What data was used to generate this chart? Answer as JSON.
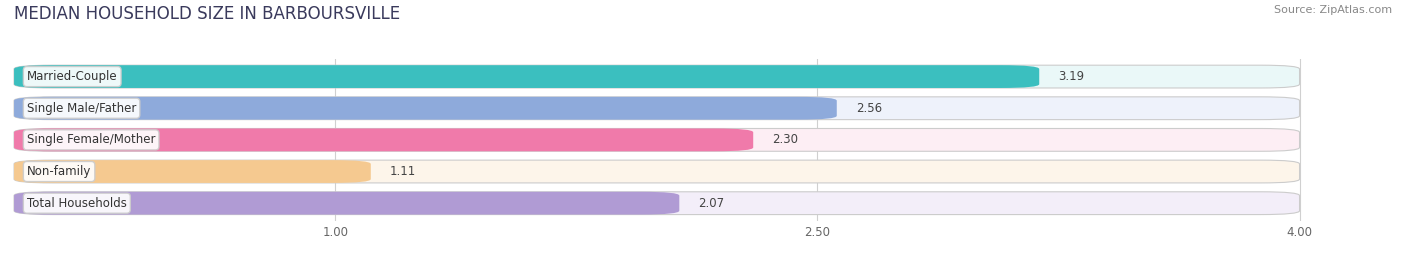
{
  "title": "MEDIAN HOUSEHOLD SIZE IN BARBOURSVILLE",
  "source": "Source: ZipAtlas.com",
  "categories": [
    "Married-Couple",
    "Single Male/Father",
    "Single Female/Mother",
    "Non-family",
    "Total Households"
  ],
  "values": [
    3.19,
    2.56,
    2.3,
    1.11,
    2.07
  ],
  "value_labels": [
    "3.19",
    "2.56",
    "2.30",
    "1.11",
    "2.07"
  ],
  "bar_colors": [
    "#3bbfbf",
    "#8eaadb",
    "#f07aaa",
    "#f5c990",
    "#b09bd4"
  ],
  "bar_bg_colors": [
    "#eaf8f8",
    "#eef2fb",
    "#fdeef4",
    "#fdf5ea",
    "#f3eef9"
  ],
  "xstart": 0.0,
  "xlim_max": 4.2,
  "xbar_max": 4.0,
  "xticks": [
    1.0,
    2.5,
    4.0
  ],
  "bar_height": 0.72,
  "bar_gap": 0.28,
  "label_fontsize": 8.5,
  "value_fontsize": 8.5,
  "title_fontsize": 12,
  "source_fontsize": 8,
  "background_color": "#ffffff",
  "title_color": "#3a3a5c",
  "grid_color": "#d0d0d0",
  "text_color": "#444444",
  "source_color": "#888888"
}
